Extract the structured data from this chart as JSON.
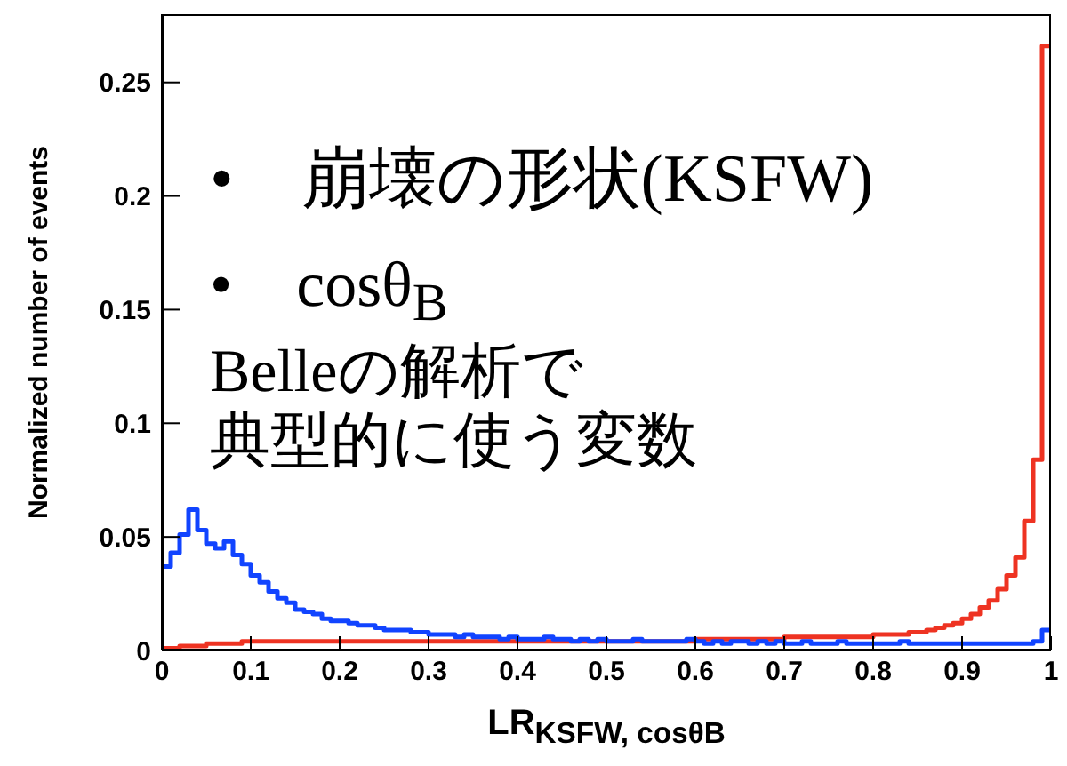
{
  "chart_data": {
    "type": "histogram",
    "ylabel": "Normalized number of events",
    "xlabel": "LR$_{KSFW, cosθ}$$_{B}$",
    "annotations": [
      "•　崩壊の形状(KSFW)",
      "•　cosθ$_{B}$",
      "Belleの解析で",
      "典型的に使う変数"
    ],
    "bins": [
      0,
      0.01,
      0.02,
      0.03,
      0.04,
      0.05,
      0.06,
      0.07,
      0.08,
      0.09,
      0.1,
      0.11,
      0.12,
      0.13,
      0.14,
      0.15,
      0.16,
      0.17,
      0.18,
      0.19,
      0.2,
      0.21,
      0.22,
      0.23,
      0.24,
      0.25,
      0.26,
      0.27,
      0.28,
      0.29,
      0.3,
      0.31,
      0.32,
      0.33,
      0.34,
      0.35,
      0.36,
      0.37,
      0.38,
      0.39,
      0.4,
      0.41,
      0.42,
      0.43,
      0.44,
      0.45,
      0.46,
      0.47,
      0.48,
      0.49,
      0.5,
      0.51,
      0.52,
      0.53,
      0.54,
      0.55,
      0.56,
      0.57,
      0.58,
      0.59,
      0.6,
      0.61,
      0.62,
      0.63,
      0.64,
      0.65,
      0.66,
      0.67,
      0.68,
      0.69,
      0.7,
      0.71,
      0.72,
      0.73,
      0.74,
      0.75,
      0.76,
      0.77,
      0.78,
      0.79,
      0.8,
      0.81,
      0.82,
      0.83,
      0.84,
      0.85,
      0.86,
      0.87,
      0.88,
      0.89,
      0.9,
      0.91,
      0.92,
      0.93,
      0.94,
      0.95,
      0.96,
      0.97,
      0.98,
      0.99,
      1
    ],
    "series": [
      {
        "color": "#ee3322",
        "values": [
          0.001,
          0.001,
          0.002,
          0.002,
          0.002,
          0.003,
          0.003,
          0.003,
          0.003,
          0.004,
          0.004,
          0.004,
          0.004,
          0.004,
          0.004,
          0.004,
          0.004,
          0.004,
          0.004,
          0.004,
          0.004,
          0.004,
          0.004,
          0.004,
          0.004,
          0.004,
          0.004,
          0.004,
          0.004,
          0.004,
          0.004,
          0.004,
          0.004,
          0.004,
          0.004,
          0.004,
          0.004,
          0.004,
          0.004,
          0.004,
          0.004,
          0.004,
          0.004,
          0.004,
          0.004,
          0.004,
          0.004,
          0.004,
          0.004,
          0.004,
          0.004,
          0.004,
          0.004,
          0.004,
          0.004,
          0.004,
          0.004,
          0.004,
          0.004,
          0.004,
          0.005,
          0.005,
          0.005,
          0.005,
          0.005,
          0.005,
          0.005,
          0.005,
          0.005,
          0.005,
          0.006,
          0.006,
          0.006,
          0.006,
          0.006,
          0.006,
          0.006,
          0.006,
          0.006,
          0.006,
          0.007,
          0.007,
          0.007,
          0.007,
          0.008,
          0.008,
          0.009,
          0.01,
          0.011,
          0.012,
          0.014,
          0.016,
          0.019,
          0.022,
          0.027,
          0.033,
          0.041,
          0.057,
          0.084,
          0.266
        ]
      },
      {
        "color": "#1144ff",
        "values": [
          0.037,
          0.043,
          0.051,
          0.062,
          0.053,
          0.047,
          0.045,
          0.048,
          0.042,
          0.038,
          0.033,
          0.03,
          0.026,
          0.023,
          0.021,
          0.018,
          0.017,
          0.016,
          0.014,
          0.013,
          0.013,
          0.012,
          0.011,
          0.011,
          0.01,
          0.009,
          0.009,
          0.009,
          0.008,
          0.008,
          0.007,
          0.007,
          0.007,
          0.006,
          0.007,
          0.006,
          0.006,
          0.006,
          0.005,
          0.006,
          0.005,
          0.005,
          0.005,
          0.006,
          0.005,
          0.005,
          0.004,
          0.005,
          0.004,
          0.005,
          0.004,
          0.004,
          0.004,
          0.005,
          0.004,
          0.004,
          0.004,
          0.004,
          0.004,
          0.005,
          0.004,
          0.003,
          0.004,
          0.003,
          0.004,
          0.004,
          0.003,
          0.004,
          0.003,
          0.004,
          0.003,
          0.003,
          0.004,
          0.003,
          0.003,
          0.003,
          0.004,
          0.003,
          0.003,
          0.003,
          0.003,
          0.003,
          0.003,
          0.004,
          0.003,
          0.003,
          0.003,
          0.003,
          0.003,
          0.003,
          0.003,
          0.003,
          0.003,
          0.003,
          0.003,
          0.003,
          0.003,
          0.003,
          0.004,
          0.009
        ]
      }
    ],
    "xlim": [
      0,
      1
    ],
    "xticks": [
      0,
      0.1,
      0.2,
      0.3,
      0.4,
      0.5,
      0.6,
      0.7,
      0.8,
      0.9,
      1
    ],
    "ylim": [
      0,
      0.28
    ],
    "yticks": [
      0,
      0.05,
      0.1,
      0.15,
      0.2,
      0.25
    ],
    "grid": false
  }
}
